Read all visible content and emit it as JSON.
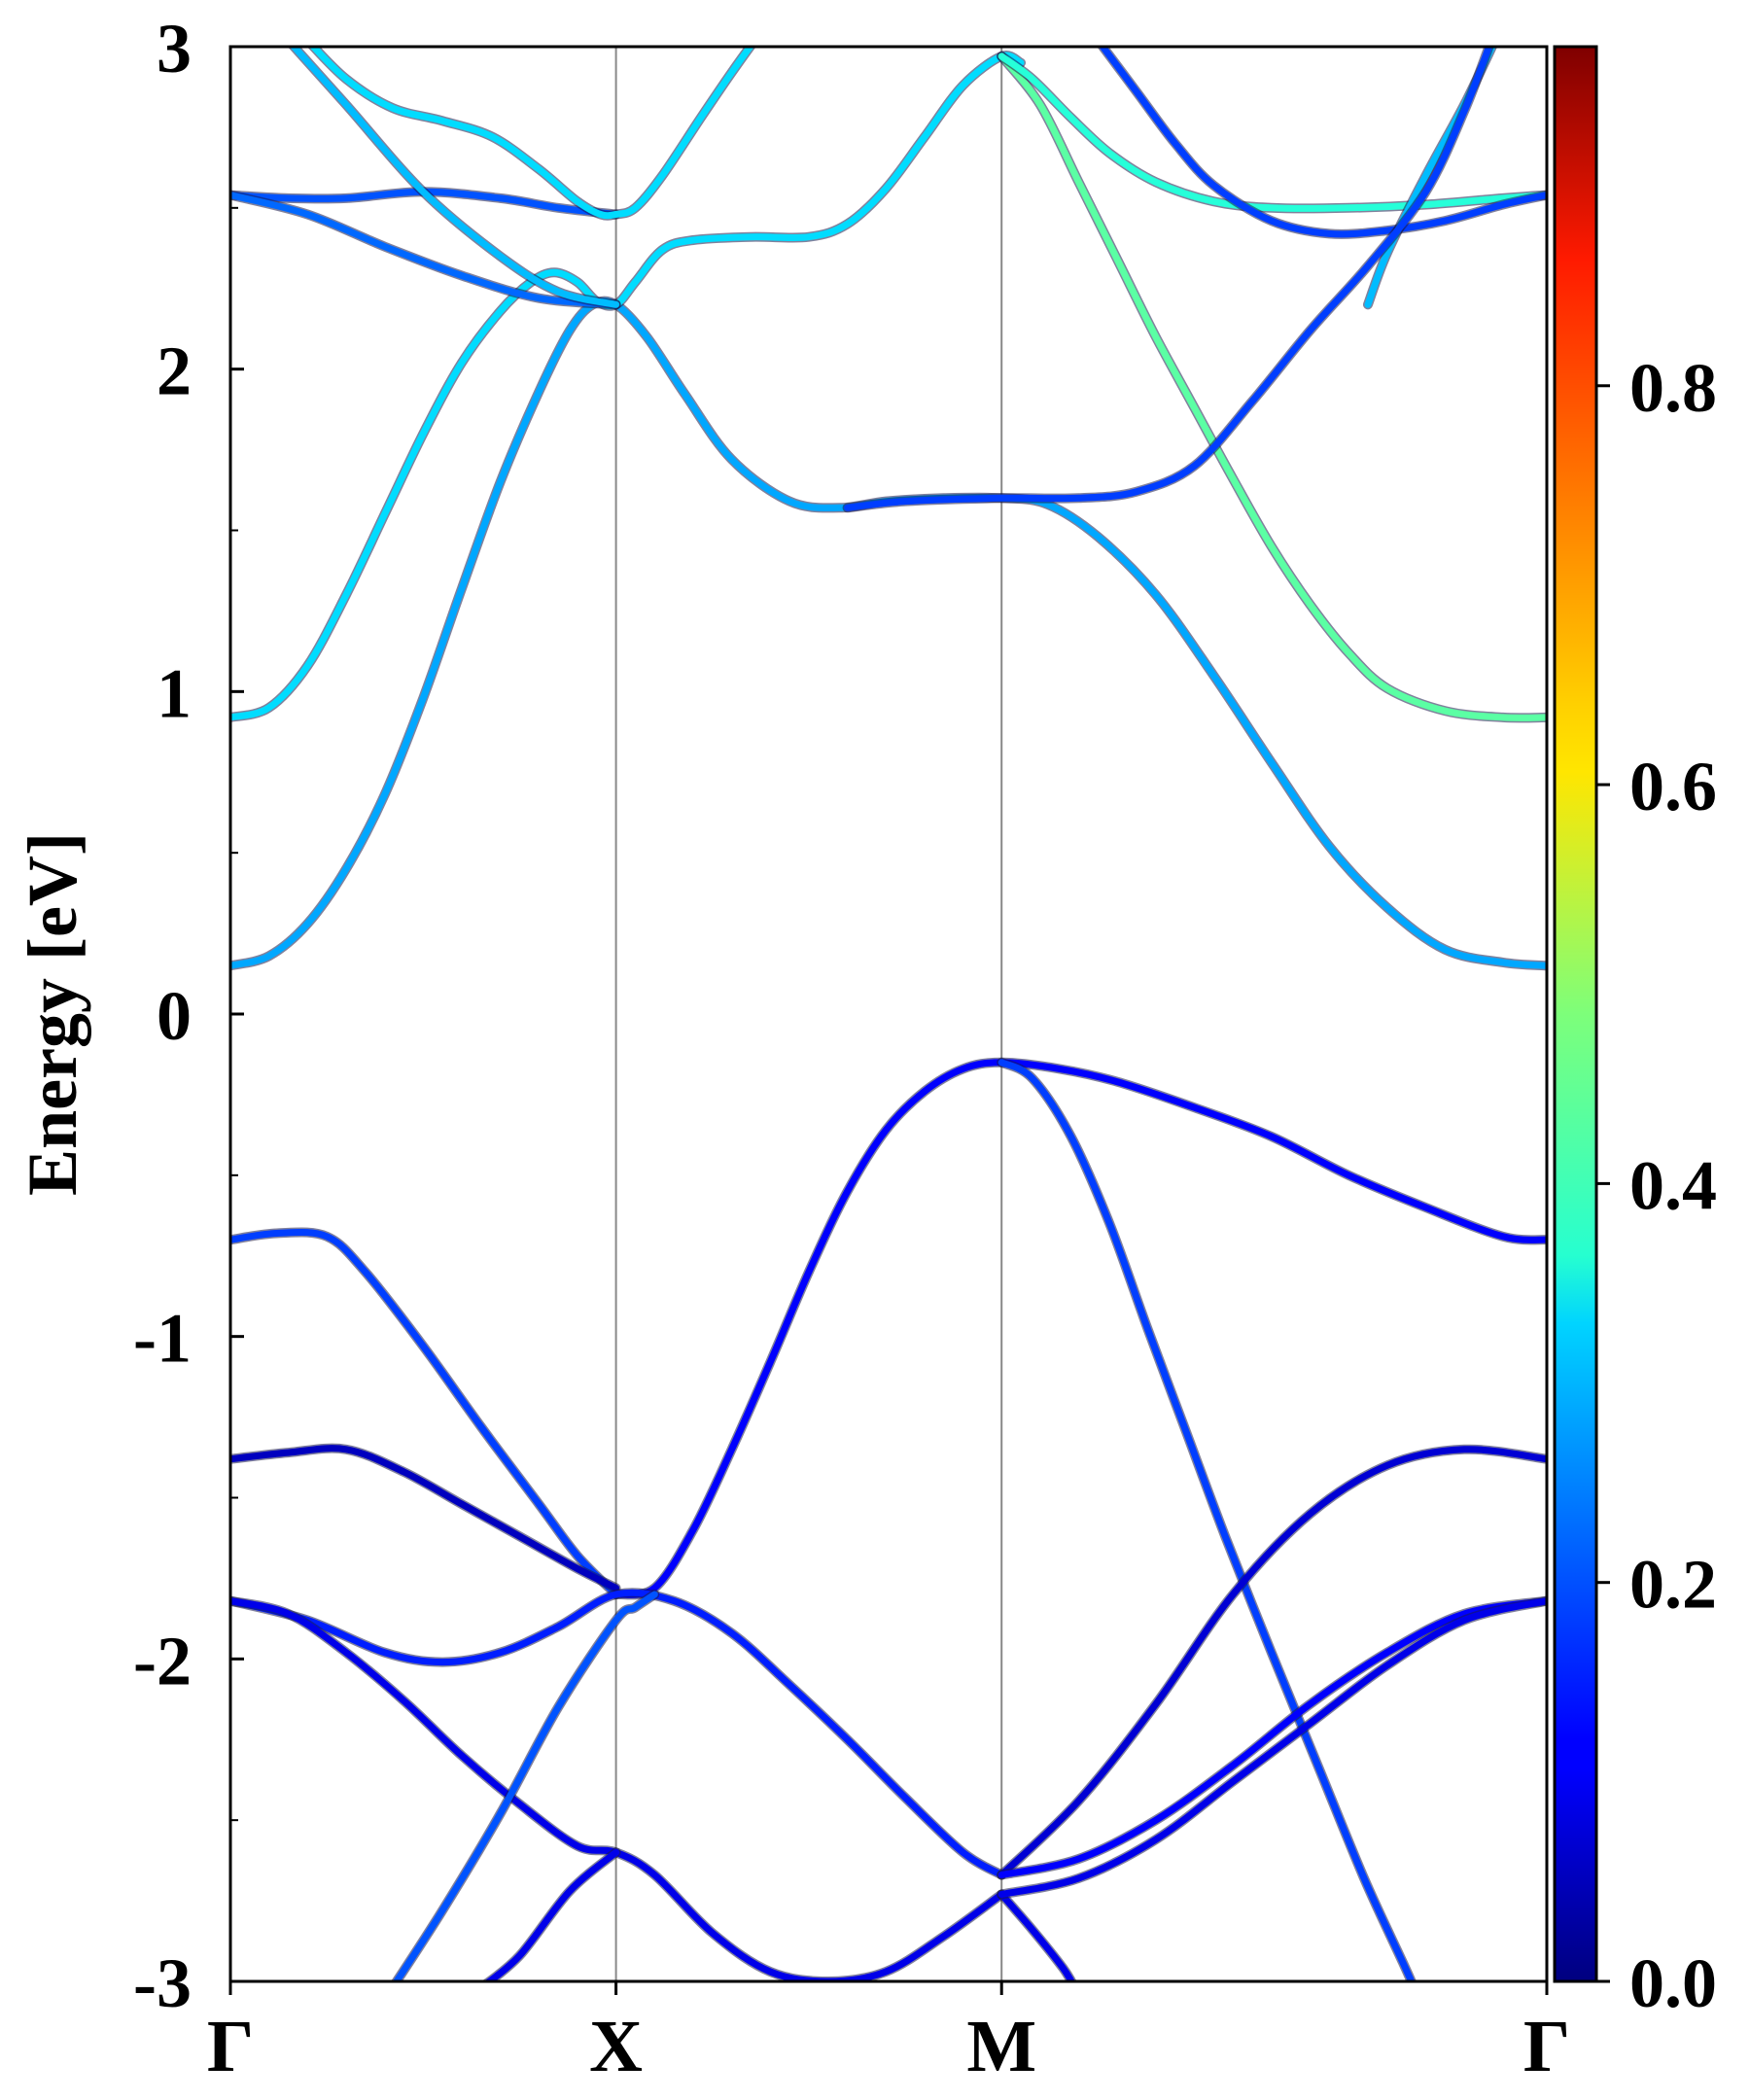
{
  "chart_data": {
    "type": "line",
    "ylabel": "Energy [eV]",
    "xlabel": "",
    "title": "",
    "ylim": [
      -3,
      3
    ],
    "xlim": [
      0,
      3.414
    ],
    "k_points": [
      {
        "label": "Γ",
        "x": 0
      },
      {
        "label": "X",
        "x": 1
      },
      {
        "label": "M",
        "x": 2
      },
      {
        "label": "Γ",
        "x": 3.414
      }
    ],
    "y_ticks": [
      "3",
      "2",
      "1",
      "0",
      "-1",
      "-2",
      "-3"
    ],
    "y_tick_values": [
      3,
      2,
      1,
      0,
      -1,
      -2,
      -3
    ],
    "y_minor_tick_values": [
      2.5,
      1.5,
      0.5,
      -0.5,
      -1.5,
      -2.5
    ],
    "grid": false,
    "colorbar": {
      "min": 0,
      "max": 0.97,
      "colormap": "jet",
      "ticks": [
        "0.0",
        "0.2",
        "0.4",
        "0.6",
        "0.8"
      ],
      "tick_values": [
        0.0,
        0.2,
        0.4,
        0.6,
        0.8
      ]
    },
    "series": [
      {
        "weight": 0.28,
        "points": [
          [
            0.0,
            0.15
          ],
          [
            0.1,
            0.18
          ],
          [
            0.2,
            0.28
          ],
          [
            0.3,
            0.45
          ],
          [
            0.4,
            0.68
          ],
          [
            0.5,
            0.98
          ],
          [
            0.6,
            1.32
          ],
          [
            0.7,
            1.65
          ],
          [
            0.8,
            1.93
          ],
          [
            0.88,
            2.12
          ],
          [
            0.94,
            2.2
          ],
          [
            1.0,
            2.2
          ],
          [
            1.08,
            2.1
          ],
          [
            1.18,
            1.92
          ],
          [
            1.3,
            1.72
          ],
          [
            1.45,
            1.59
          ],
          [
            1.58,
            1.57
          ],
          [
            1.7,
            1.59
          ],
          [
            1.85,
            1.6
          ],
          [
            2.0,
            1.6
          ],
          [
            2.12,
            1.58
          ],
          [
            2.25,
            1.48
          ],
          [
            2.4,
            1.3
          ],
          [
            2.55,
            1.05
          ],
          [
            2.7,
            0.78
          ],
          [
            2.85,
            0.52
          ],
          [
            3.0,
            0.33
          ],
          [
            3.15,
            0.2
          ],
          [
            3.3,
            0.16
          ],
          [
            3.414,
            0.15
          ]
        ]
      },
      {
        "weight": 0.33,
        "points": [
          [
            0.0,
            0.92
          ],
          [
            0.1,
            0.95
          ],
          [
            0.2,
            1.08
          ],
          [
            0.3,
            1.3
          ],
          [
            0.4,
            1.55
          ],
          [
            0.5,
            1.8
          ],
          [
            0.6,
            2.02
          ],
          [
            0.7,
            2.18
          ],
          [
            0.78,
            2.27
          ],
          [
            0.84,
            2.3
          ],
          [
            0.9,
            2.27
          ],
          [
            0.95,
            2.21
          ],
          [
            1.0,
            2.2
          ],
          [
            1.05,
            2.27
          ],
          [
            1.12,
            2.37
          ],
          [
            1.2,
            2.4
          ],
          [
            1.35,
            2.41
          ],
          [
            1.5,
            2.41
          ],
          [
            1.6,
            2.45
          ],
          [
            1.7,
            2.56
          ],
          [
            1.8,
            2.72
          ],
          [
            1.9,
            2.88
          ],
          [
            2.0,
            2.97
          ],
          [
            2.05,
            2.95
          ]
        ]
      },
      {
        "weight": 0.45,
        "points": [
          [
            2.0,
            2.97
          ],
          [
            2.1,
            2.82
          ],
          [
            2.2,
            2.58
          ],
          [
            2.3,
            2.34
          ],
          [
            2.4,
            2.1
          ],
          [
            2.5,
            1.88
          ],
          [
            2.6,
            1.66
          ],
          [
            2.7,
            1.45
          ],
          [
            2.8,
            1.27
          ],
          [
            2.9,
            1.12
          ],
          [
            3.0,
            1.01
          ],
          [
            3.15,
            0.94
          ],
          [
            3.3,
            0.92
          ],
          [
            3.414,
            0.92
          ]
        ]
      },
      {
        "weight": 0.4,
        "points": [
          [
            2.0,
            2.97
          ],
          [
            2.08,
            2.9
          ],
          [
            2.18,
            2.78
          ],
          [
            2.28,
            2.67
          ],
          [
            2.4,
            2.58
          ],
          [
            2.55,
            2.52
          ],
          [
            2.7,
            2.5
          ],
          [
            2.9,
            2.5
          ],
          [
            3.1,
            2.51
          ],
          [
            3.3,
            2.53
          ],
          [
            3.414,
            2.54
          ]
        ]
      },
      {
        "weight": 0.2,
        "points": [
          [
            0.0,
            2.54
          ],
          [
            0.15,
            2.53
          ],
          [
            0.3,
            2.53
          ],
          [
            0.5,
            2.55
          ],
          [
            0.7,
            2.53
          ],
          [
            0.85,
            2.5
          ],
          [
            1.0,
            2.48
          ]
        ]
      },
      {
        "weight": 0.22,
        "points": [
          [
            0.0,
            2.54
          ],
          [
            0.2,
            2.48
          ],
          [
            0.4,
            2.38
          ],
          [
            0.6,
            2.29
          ],
          [
            0.8,
            2.22
          ],
          [
            1.0,
            2.2
          ]
        ]
      },
      {
        "weight": 0.33,
        "points": [
          [
            0.2,
            3.02
          ],
          [
            0.3,
            2.9
          ],
          [
            0.42,
            2.81
          ],
          [
            0.55,
            2.77
          ],
          [
            0.68,
            2.72
          ],
          [
            0.8,
            2.62
          ],
          [
            0.9,
            2.52
          ],
          [
            0.96,
            2.48
          ],
          [
            1.0,
            2.48
          ],
          [
            1.05,
            2.5
          ],
          [
            1.12,
            2.6
          ],
          [
            1.22,
            2.78
          ],
          [
            1.3,
            2.92
          ],
          [
            1.36,
            3.02
          ]
        ]
      },
      {
        "weight": 0.3,
        "points": [
          [
            0.15,
            3.02
          ],
          [
            0.3,
            2.82
          ],
          [
            0.5,
            2.55
          ],
          [
            0.7,
            2.35
          ],
          [
            0.85,
            2.24
          ],
          [
            1.0,
            2.2
          ]
        ]
      },
      {
        "weight": 0.18,
        "points": [
          [
            2.25,
            3.02
          ],
          [
            2.35,
            2.86
          ],
          [
            2.45,
            2.7
          ],
          [
            2.55,
            2.57
          ],
          [
            2.7,
            2.46
          ],
          [
            2.85,
            2.42
          ],
          [
            3.0,
            2.43
          ],
          [
            3.15,
            2.46
          ],
          [
            3.3,
            2.51
          ],
          [
            3.414,
            2.54
          ]
        ]
      },
      {
        "weight": 0.3,
        "points": [
          [
            2.95,
            2.2
          ],
          [
            3.0,
            2.36
          ],
          [
            3.1,
            2.6
          ],
          [
            3.2,
            2.82
          ],
          [
            3.28,
            3.02
          ]
        ]
      },
      {
        "weight": 0.18,
        "points": [
          [
            1.6,
            1.57
          ],
          [
            1.75,
            1.59
          ],
          [
            2.0,
            1.6
          ],
          [
            2.2,
            1.6
          ],
          [
            2.35,
            1.62
          ],
          [
            2.5,
            1.7
          ],
          [
            2.65,
            1.9
          ],
          [
            2.8,
            2.12
          ],
          [
            2.95,
            2.32
          ],
          [
            3.1,
            2.55
          ],
          [
            3.2,
            2.8
          ],
          [
            3.27,
            3.02
          ]
        ]
      },
      {
        "weight": 0.12,
        "points": [
          [
            1.0,
            -1.8
          ],
          [
            1.1,
            -1.78
          ],
          [
            1.2,
            -1.6
          ],
          [
            1.3,
            -1.35
          ],
          [
            1.4,
            -1.08
          ],
          [
            1.5,
            -0.8
          ],
          [
            1.6,
            -0.55
          ],
          [
            1.7,
            -0.36
          ],
          [
            1.8,
            -0.24
          ],
          [
            1.9,
            -0.17
          ],
          [
            2.0,
            -0.15
          ],
          [
            2.15,
            -0.17
          ],
          [
            2.3,
            -0.21
          ],
          [
            2.5,
            -0.29
          ],
          [
            2.7,
            -0.38
          ],
          [
            2.9,
            -0.5
          ],
          [
            3.1,
            -0.6
          ],
          [
            3.3,
            -0.69
          ],
          [
            3.414,
            -0.7
          ]
        ]
      },
      {
        "weight": 0.18,
        "points": [
          [
            2.0,
            -0.15
          ],
          [
            2.08,
            -0.2
          ],
          [
            2.18,
            -0.38
          ],
          [
            2.28,
            -0.65
          ],
          [
            2.38,
            -0.98
          ],
          [
            2.48,
            -1.3
          ],
          [
            2.58,
            -1.62
          ],
          [
            2.7,
            -1.98
          ],
          [
            2.82,
            -2.33
          ],
          [
            2.94,
            -2.68
          ],
          [
            3.04,
            -2.94
          ],
          [
            3.07,
            -3.02
          ]
        ]
      },
      {
        "weight": 0.18,
        "points": [
          [
            0.0,
            -0.7
          ],
          [
            0.12,
            -0.68
          ],
          [
            0.25,
            -0.69
          ],
          [
            0.35,
            -0.8
          ],
          [
            0.5,
            -1.03
          ],
          [
            0.65,
            -1.28
          ],
          [
            0.8,
            -1.52
          ],
          [
            0.9,
            -1.68
          ],
          [
            1.0,
            -1.8
          ]
        ]
      },
      {
        "weight": 0.06,
        "points": [
          [
            0.0,
            -1.38
          ],
          [
            0.15,
            -1.36
          ],
          [
            0.3,
            -1.35
          ],
          [
            0.45,
            -1.42
          ],
          [
            0.6,
            -1.52
          ],
          [
            0.75,
            -1.62
          ],
          [
            0.9,
            -1.72
          ],
          [
            1.0,
            -1.78
          ]
        ]
      },
      {
        "weight": 0.15,
        "points": [
          [
            0.0,
            -1.82
          ],
          [
            0.2,
            -1.88
          ],
          [
            0.4,
            -1.98
          ],
          [
            0.55,
            -2.01
          ],
          [
            0.7,
            -1.98
          ],
          [
            0.85,
            -1.9
          ],
          [
            1.0,
            -1.8
          ],
          [
            1.15,
            -1.82
          ],
          [
            1.3,
            -1.92
          ],
          [
            1.45,
            -2.08
          ],
          [
            1.6,
            -2.25
          ],
          [
            1.75,
            -2.43
          ],
          [
            1.9,
            -2.6
          ],
          [
            2.0,
            -2.67
          ]
        ]
      },
      {
        "weight": 0.1,
        "points": [
          [
            0.0,
            -1.82
          ],
          [
            0.15,
            -1.86
          ],
          [
            0.3,
            -1.98
          ],
          [
            0.45,
            -2.13
          ],
          [
            0.6,
            -2.3
          ],
          [
            0.75,
            -2.45
          ],
          [
            0.9,
            -2.58
          ],
          [
            1.0,
            -2.6
          ],
          [
            1.1,
            -2.67
          ],
          [
            1.25,
            -2.85
          ],
          [
            1.4,
            -2.97
          ],
          [
            1.55,
            -3.0
          ],
          [
            1.7,
            -2.97
          ],
          [
            1.85,
            -2.86
          ],
          [
            2.0,
            -2.73
          ]
        ]
      },
      {
        "weight": 0.1,
        "points": [
          [
            0.65,
            -3.02
          ],
          [
            0.75,
            -2.92
          ],
          [
            0.88,
            -2.72
          ],
          [
            1.0,
            -2.6
          ]
        ]
      },
      {
        "weight": 0.2,
        "points": [
          [
            0.42,
            -3.02
          ],
          [
            0.55,
            -2.78
          ],
          [
            0.7,
            -2.48
          ],
          [
            0.85,
            -2.15
          ],
          [
            1.0,
            -1.88
          ],
          [
            1.05,
            -1.84
          ],
          [
            1.1,
            -1.8
          ]
        ]
      },
      {
        "weight": 0.1,
        "points": [
          [
            2.0,
            -2.73
          ],
          [
            2.08,
            -2.84
          ],
          [
            2.16,
            -2.96
          ],
          [
            2.19,
            -3.02
          ]
        ]
      },
      {
        "weight": 0.08,
        "points": [
          [
            2.0,
            -2.67
          ],
          [
            2.2,
            -2.44
          ],
          [
            2.4,
            -2.14
          ],
          [
            2.6,
            -1.8
          ],
          [
            2.8,
            -1.55
          ],
          [
            3.0,
            -1.4
          ],
          [
            3.2,
            -1.35
          ],
          [
            3.414,
            -1.38
          ]
        ]
      },
      {
        "weight": 0.12,
        "points": [
          [
            2.0,
            -2.67
          ],
          [
            2.2,
            -2.62
          ],
          [
            2.4,
            -2.5
          ],
          [
            2.6,
            -2.33
          ],
          [
            2.8,
            -2.14
          ],
          [
            3.0,
            -1.98
          ],
          [
            3.2,
            -1.86
          ],
          [
            3.414,
            -1.82
          ]
        ]
      },
      {
        "weight": 0.1,
        "points": [
          [
            2.0,
            -2.73
          ],
          [
            2.2,
            -2.68
          ],
          [
            2.4,
            -2.56
          ],
          [
            2.6,
            -2.38
          ],
          [
            2.8,
            -2.2
          ],
          [
            3.0,
            -2.02
          ],
          [
            3.2,
            -1.88
          ],
          [
            3.414,
            -1.82
          ]
        ]
      }
    ]
  }
}
